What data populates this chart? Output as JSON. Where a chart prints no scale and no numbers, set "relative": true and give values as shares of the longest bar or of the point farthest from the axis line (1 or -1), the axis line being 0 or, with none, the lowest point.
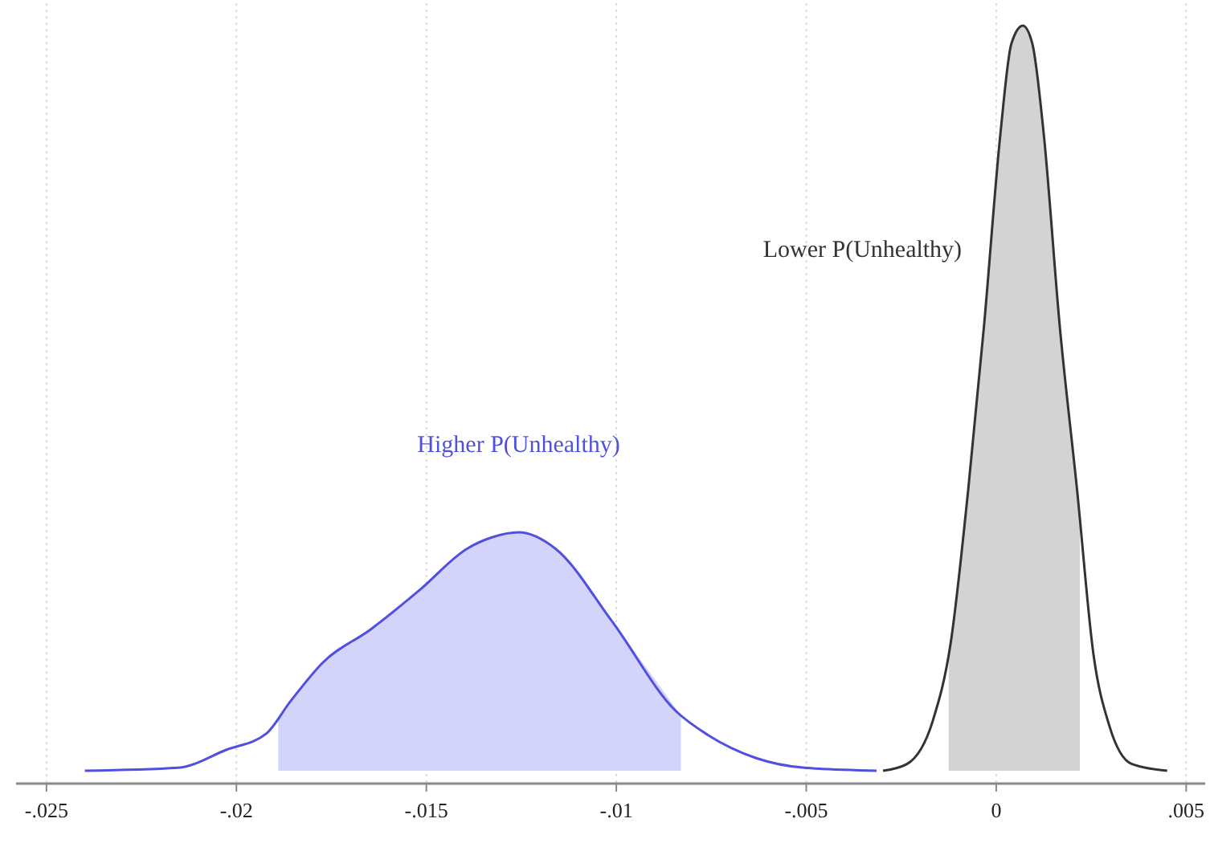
{
  "chart_data": {
    "type": "line",
    "relative": true,
    "grid": "x",
    "xlim": [
      -0.0258,
      0.0055
    ],
    "xticks": [
      {
        "value": -0.025,
        "label": "-.025"
      },
      {
        "value": -0.02,
        "label": "-.02"
      },
      {
        "value": -0.015,
        "label": "-.015"
      },
      {
        "value": -0.01,
        "label": "-.01"
      },
      {
        "value": -0.005,
        "label": "-.005"
      },
      0,
      {
        "value": 0.005,
        "label": ".005"
      }
    ],
    "series": [
      {
        "type": "area",
        "color": "#d4d4fa",
        "x": [
          -0.0189,
          -0.01858,
          -0.01773,
          -0.01646,
          -0.01519,
          -0.01393,
          -0.01329,
          -0.01257,
          -0.0116,
          -0.01012,
          -0.0083
        ],
        "values": [
          0.07,
          0.093,
          0.145,
          0.19,
          0.242,
          0.298,
          0.313,
          0.32,
          0.298,
          0.201,
          0.074
        ]
      },
      {
        "type": "area",
        "color": "#d3d3d3",
        "x": [
          -0.00125,
          -0.00074,
          -0.00032,
          0.00011,
          0.0004,
          0.0007,
          0.00095,
          0.00125,
          0.00167,
          0.0022
        ],
        "values": [
          0.16,
          0.376,
          0.598,
          0.855,
          0.976,
          1,
          0.976,
          0.855,
          0.598,
          0.34
        ]
      },
      {
        "name": "Higher P(Unhealthy)",
        "color": "#5050e0",
        "x": [
          -0.02399,
          -0.02153,
          -0.02027,
          -0.01921,
          -0.01858,
          -0.01773,
          -0.01646,
          -0.01519,
          -0.01393,
          -0.01329,
          -0.01257,
          -0.0116,
          -0.01012,
          -0.00843,
          -0.00759,
          -0.00632,
          -0.00505,
          -0.00315
        ],
        "values": [
          0,
          0.004,
          0.028,
          0.05,
          0.093,
          0.145,
          0.19,
          0.242,
          0.298,
          0.313,
          0.32,
          0.298,
          0.201,
          0.08,
          0.048,
          0.017,
          0.004,
          0
        ]
      },
      {
        "name": "Lower P(Unhealthy)",
        "color": "#333333",
        "x": [
          -0.00298,
          -0.00235,
          -0.00167,
          -0.0012,
          -0.00074,
          -0.00032,
          0.00011,
          0.0004,
          0.0007,
          0.00095,
          0.00125,
          0.00167,
          0.00213,
          0.00256,
          0.00298,
          0.00357,
          0.0045
        ],
        "values": [
          0,
          0.009,
          0.067,
          0.171,
          0.376,
          0.598,
          0.855,
          0.976,
          1,
          0.976,
          0.855,
          0.598,
          0.376,
          0.156,
          0.06,
          0.009,
          0
        ]
      }
    ]
  }
}
